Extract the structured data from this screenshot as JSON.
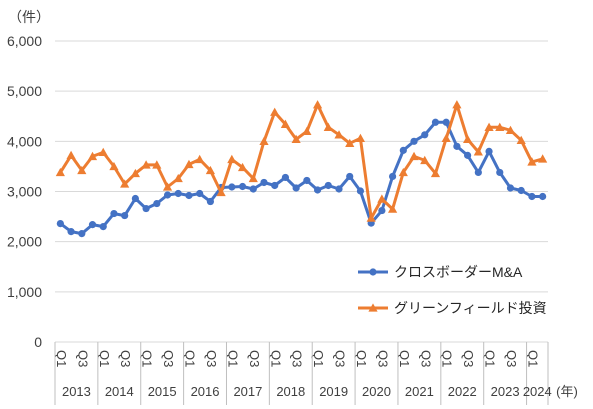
{
  "chart_data": {
    "type": "line",
    "y_unit_label": "（件）",
    "x_unit_label": "(年)",
    "ylim": [
      0,
      6000
    ],
    "yticks": [
      "0",
      "1,000",
      "2,000",
      "3,000",
      "4,000",
      "5,000",
      "6,000"
    ],
    "ytick_values": [
      0,
      1000,
      2000,
      3000,
      4000,
      5000,
      6000
    ],
    "grid": true,
    "legend_position": "bottom-right",
    "quarter_tick_labels": [
      "Q1",
      "Q3",
      "Q1",
      "Q3",
      "Q1",
      "Q3",
      "Q1",
      "Q3",
      "Q1",
      "Q3",
      "Q1",
      "Q3",
      "Q1",
      "Q3",
      "Q1",
      "Q3",
      "Q1",
      "Q3",
      "Q1",
      "Q3",
      "Q1",
      "Q3",
      "Q1"
    ],
    "years": [
      "2013",
      "2014",
      "2015",
      "2016",
      "2017",
      "2018",
      "2019",
      "2020",
      "2021",
      "2022",
      "2023",
      "2024"
    ],
    "x": [
      "2013Q1",
      "2013Q2",
      "2013Q3",
      "2013Q4",
      "2014Q1",
      "2014Q2",
      "2014Q3",
      "2014Q4",
      "2015Q1",
      "2015Q2",
      "2015Q3",
      "2015Q4",
      "2016Q1",
      "2016Q2",
      "2016Q3",
      "2016Q4",
      "2017Q1",
      "2017Q2",
      "2017Q3",
      "2017Q4",
      "2018Q1",
      "2018Q2",
      "2018Q3",
      "2018Q4",
      "2019Q1",
      "2019Q2",
      "2019Q3",
      "2019Q4",
      "2020Q1",
      "2020Q2",
      "2020Q3",
      "2020Q4",
      "2021Q1",
      "2021Q2",
      "2021Q3",
      "2021Q4",
      "2022Q1",
      "2022Q2",
      "2022Q3",
      "2022Q4",
      "2023Q1",
      "2023Q2",
      "2023Q3",
      "2023Q4",
      "2024Q1",
      "2024Q2"
    ],
    "series": [
      {
        "name": "クロスボーダーM&A",
        "color": "#4472c4",
        "marker": "circle",
        "values": [
          2360,
          2200,
          2160,
          2340,
          2300,
          2560,
          2520,
          2860,
          2660,
          2760,
          2930,
          2960,
          2920,
          2960,
          2800,
          3080,
          3090,
          3100,
          3050,
          3180,
          3120,
          3280,
          3070,
          3220,
          3030,
          3120,
          3050,
          3300,
          3010,
          2370,
          2620,
          3300,
          3820,
          4000,
          4130,
          4380,
          4380,
          3900,
          3720,
          3380,
          3800,
          3380,
          3070,
          3020,
          2900,
          2900
        ]
      },
      {
        "name": "グリーンフィールド投資",
        "color": "#ed7d31",
        "marker": "triangle",
        "values": [
          3380,
          3720,
          3420,
          3700,
          3780,
          3500,
          3150,
          3360,
          3530,
          3530,
          3090,
          3260,
          3540,
          3640,
          3420,
          2980,
          3640,
          3480,
          3260,
          4000,
          4580,
          4340,
          4040,
          4200,
          4730,
          4280,
          4130,
          3960,
          4060,
          2470,
          2850,
          2650,
          3380,
          3700,
          3620,
          3360,
          4060,
          4730,
          4040,
          3790,
          4280,
          4280,
          4220,
          4020,
          3590,
          3650
        ]
      }
    ]
  }
}
